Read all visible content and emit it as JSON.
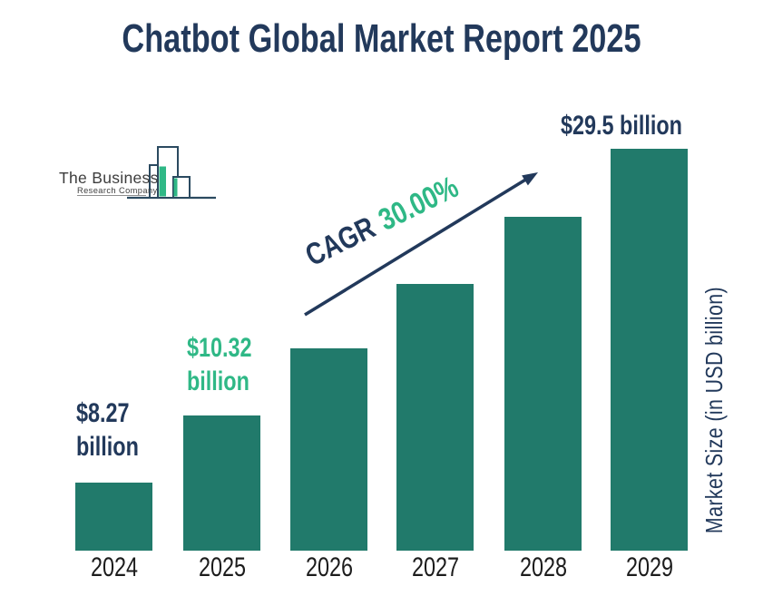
{
  "title": "Chatbot Global Market Report 2025",
  "logo": {
    "name_line1": "The Business",
    "name_line2": "Research Company"
  },
  "colors": {
    "bar_teal": "#217a6b",
    "navy": "#22395b",
    "green": "#2fb886",
    "axis_text": "#1c1c1c",
    "logo_outline": "#2b4a60",
    "logo_text": "#3d3d3d"
  },
  "chart_data": {
    "type": "bar",
    "title": "Chatbot Global Market Report 2025",
    "categories": [
      "2024",
      "2025",
      "2026",
      "2027",
      "2028",
      "2029"
    ],
    "values": [
      8.27,
      10.32,
      13.42,
      17.44,
      22.67,
      29.5
    ],
    "values_estimated_from_cagr": [
      "2026",
      "2027",
      "2028"
    ],
    "xlabel": "",
    "ylabel": "Market Size (in USD billion)",
    "cagr_label": "CAGR",
    "cagr_value": "30.00%",
    "grid": false,
    "legend": "none",
    "value_labels": [
      {
        "category": "2024",
        "line1": "$8.27",
        "line2": "billion",
        "color": "navy"
      },
      {
        "category": "2025",
        "line1": "$10.32",
        "line2": "billion",
        "color": "green"
      },
      {
        "category": "2029",
        "line1": "$29.5 billion",
        "line2": "",
        "color": "navy"
      }
    ]
  }
}
